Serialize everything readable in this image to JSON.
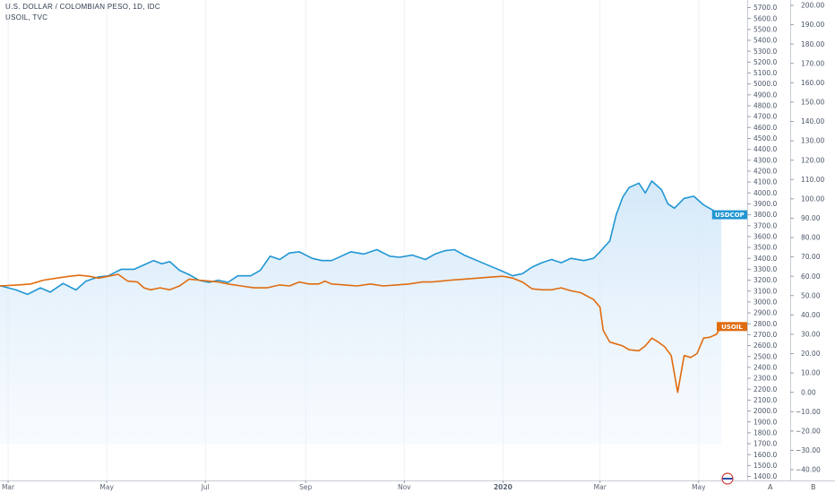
{
  "header": {
    "title": "U.S. DOLLAR / COLOMBIAN PESO, 1D, IDC",
    "subtitle": "USOIL, TVC"
  },
  "scale_buttons": {
    "a": "A",
    "b": "B"
  },
  "chart_data": {
    "type": "line",
    "x_ticks": [
      {
        "label": "Mar",
        "day": 0
      },
      {
        "label": "May",
        "day": 61
      },
      {
        "label": "Jul",
        "day": 122
      },
      {
        "label": "Sep",
        "day": 184
      },
      {
        "label": "Nov",
        "day": 245
      },
      {
        "label": "2020",
        "day": 306
      },
      {
        "label": "Mar",
        "day": 366
      },
      {
        "label": "May",
        "day": 427
      }
    ],
    "x_range": [
      -5,
      457
    ],
    "left_axis": {
      "min": 1400,
      "max": 5700,
      "step": 100
    },
    "right_axis": {
      "min": -40,
      "max": 200,
      "step": 10
    },
    "grid": true,
    "series": [
      {
        "name": "USDCOP",
        "axis": "left",
        "color": "#2196d3",
        "fill": true,
        "tag": "USDCOP",
        "points": [
          [
            -5,
            3150
          ],
          [
            5,
            3110
          ],
          [
            12,
            3070
          ],
          [
            20,
            3130
          ],
          [
            26,
            3090
          ],
          [
            34,
            3170
          ],
          [
            42,
            3110
          ],
          [
            48,
            3190
          ],
          [
            56,
            3230
          ],
          [
            62,
            3240
          ],
          [
            70,
            3300
          ],
          [
            78,
            3300
          ],
          [
            84,
            3340
          ],
          [
            90,
            3380
          ],
          [
            95,
            3350
          ],
          [
            100,
            3370
          ],
          [
            106,
            3290
          ],
          [
            112,
            3250
          ],
          [
            118,
            3200
          ],
          [
            124,
            3180
          ],
          [
            130,
            3200
          ],
          [
            136,
            3180
          ],
          [
            142,
            3240
          ],
          [
            150,
            3240
          ],
          [
            156,
            3290
          ],
          [
            162,
            3420
          ],
          [
            168,
            3390
          ],
          [
            174,
            3450
          ],
          [
            180,
            3460
          ],
          [
            188,
            3400
          ],
          [
            194,
            3380
          ],
          [
            200,
            3380
          ],
          [
            206,
            3420
          ],
          [
            212,
            3460
          ],
          [
            220,
            3440
          ],
          [
            228,
            3480
          ],
          [
            236,
            3420
          ],
          [
            242,
            3410
          ],
          [
            250,
            3430
          ],
          [
            258,
            3390
          ],
          [
            264,
            3440
          ],
          [
            270,
            3470
          ],
          [
            276,
            3480
          ],
          [
            282,
            3430
          ],
          [
            290,
            3380
          ],
          [
            298,
            3330
          ],
          [
            306,
            3280
          ],
          [
            312,
            3240
          ],
          [
            318,
            3260
          ],
          [
            324,
            3320
          ],
          [
            330,
            3360
          ],
          [
            336,
            3390
          ],
          [
            342,
            3360
          ],
          [
            348,
            3400
          ],
          [
            356,
            3380
          ],
          [
            362,
            3400
          ],
          [
            366,
            3460
          ],
          [
            372,
            3560
          ],
          [
            376,
            3800
          ],
          [
            380,
            3960
          ],
          [
            384,
            4050
          ],
          [
            390,
            4090
          ],
          [
            394,
            4000
          ],
          [
            398,
            4110
          ],
          [
            404,
            4030
          ],
          [
            408,
            3900
          ],
          [
            412,
            3860
          ],
          [
            418,
            3950
          ],
          [
            424,
            3970
          ],
          [
            430,
            3890
          ],
          [
            436,
            3840
          ],
          [
            441,
            3800
          ]
        ]
      },
      {
        "name": "USOIL",
        "axis": "right",
        "color": "#e06c10",
        "fill": false,
        "tag": "USOIL",
        "points": [
          [
            -5,
            55
          ],
          [
            6,
            55.5
          ],
          [
            14,
            56
          ],
          [
            22,
            58
          ],
          [
            30,
            59
          ],
          [
            38,
            60
          ],
          [
            44,
            60.5
          ],
          [
            50,
            60
          ],
          [
            56,
            59
          ],
          [
            62,
            60
          ],
          [
            68,
            61
          ],
          [
            74,
            57.5
          ],
          [
            80,
            57
          ],
          [
            84,
            54
          ],
          [
            88,
            53
          ],
          [
            94,
            54
          ],
          [
            100,
            53
          ],
          [
            106,
            55
          ],
          [
            112,
            58.5
          ],
          [
            118,
            58
          ],
          [
            124,
            57.5
          ],
          [
            130,
            57
          ],
          [
            136,
            56
          ],
          [
            144,
            55
          ],
          [
            152,
            54
          ],
          [
            160,
            54
          ],
          [
            168,
            55.5
          ],
          [
            174,
            55
          ],
          [
            180,
            57
          ],
          [
            186,
            56
          ],
          [
            192,
            56
          ],
          [
            196,
            57.5
          ],
          [
            200,
            56
          ],
          [
            208,
            55.5
          ],
          [
            216,
            55
          ],
          [
            224,
            56
          ],
          [
            232,
            55
          ],
          [
            240,
            55.5
          ],
          [
            248,
            56
          ],
          [
            256,
            57
          ],
          [
            262,
            57
          ],
          [
            268,
            57.5
          ],
          [
            274,
            58
          ],
          [
            282,
            58.5
          ],
          [
            290,
            59
          ],
          [
            298,
            59.5
          ],
          [
            306,
            60
          ],
          [
            312,
            59
          ],
          [
            318,
            57
          ],
          [
            324,
            53.5
          ],
          [
            330,
            53
          ],
          [
            336,
            53
          ],
          [
            342,
            54
          ],
          [
            348,
            52.5
          ],
          [
            354,
            51.5
          ],
          [
            362,
            48
          ],
          [
            366,
            44
          ],
          [
            368,
            32
          ],
          [
            372,
            26
          ],
          [
            376,
            25
          ],
          [
            380,
            24
          ],
          [
            384,
            22
          ],
          [
            390,
            21.5
          ],
          [
            394,
            24
          ],
          [
            398,
            28
          ],
          [
            402,
            26
          ],
          [
            406,
            23.5
          ],
          [
            410,
            19
          ],
          [
            414,
            0
          ],
          [
            418,
            19
          ],
          [
            422,
            18
          ],
          [
            426,
            20
          ],
          [
            430,
            28
          ],
          [
            434,
            28.5
          ],
          [
            438,
            30
          ],
          [
            441,
            34
          ]
        ]
      }
    ]
  }
}
